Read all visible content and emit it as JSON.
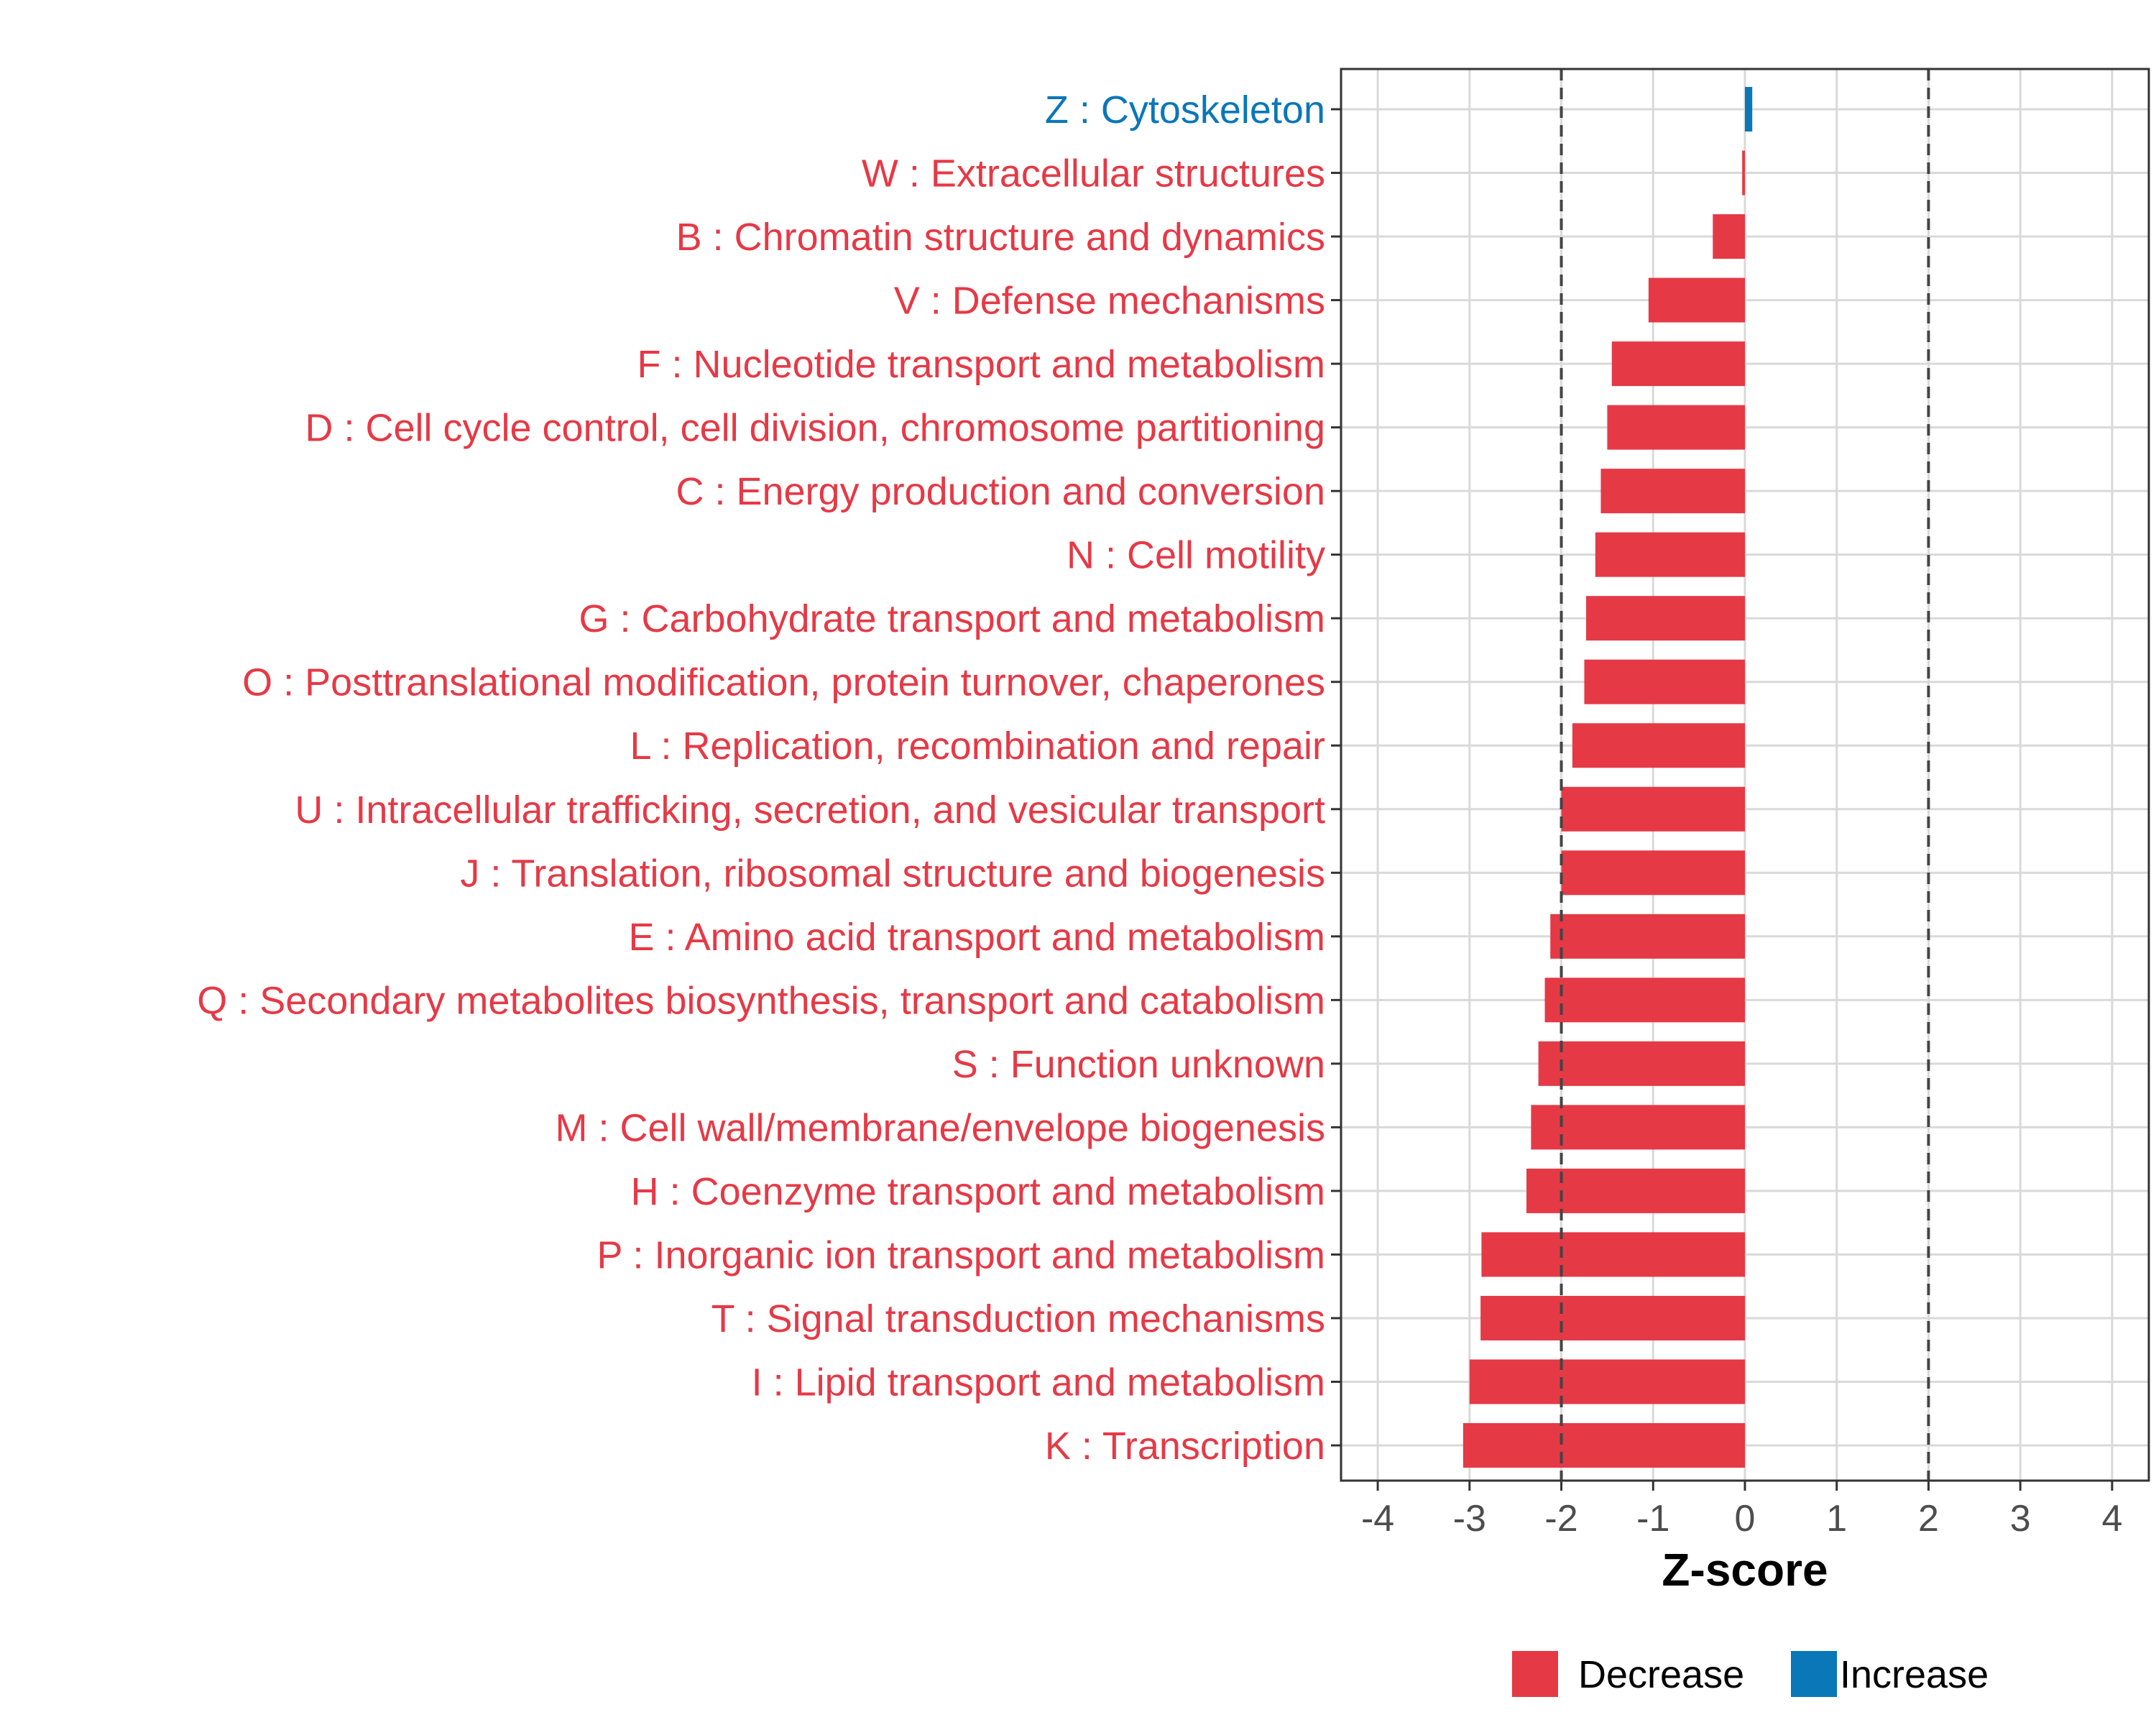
{
  "chart_data": {
    "type": "bar",
    "orientation": "horizontal",
    "xlabel": "Z-score",
    "xlim": [
      -4.4,
      4.4
    ],
    "xticks": [
      -4,
      -3,
      -2,
      -1,
      0,
      1,
      2,
      3,
      4
    ],
    "xtick_labels": [
      "-4",
      "-3",
      "-2",
      "-1",
      "0",
      "1",
      "2",
      "3",
      "4"
    ],
    "reference_lines": [
      -2,
      2
    ],
    "grid": true,
    "legend_position": "bottom",
    "colors": {
      "Decrease": "#e63946",
      "Increase": "#0a77b8"
    },
    "legend": [
      {
        "label": "Decrease",
        "color": "#e63946"
      },
      {
        "label": "Increase",
        "color": "#0a77b8"
      }
    ],
    "categories": [
      "Z : Cytoskeleton",
      "W : Extracellular structures",
      "B : Chromatin structure and dynamics",
      "V : Defense mechanisms",
      "F : Nucleotide transport and metabolism",
      "D : Cell cycle control, cell division, chromosome partitioning",
      "C : Energy production and conversion",
      "N : Cell motility",
      "G : Carbohydrate transport and metabolism",
      "O : Posttranslational modification, protein turnover, chaperones",
      "L : Replication, recombination and repair",
      "U : Intracellular trafficking, secretion, and vesicular transport",
      "J : Translation, ribosomal structure and biogenesis",
      "E : Amino acid transport and metabolism",
      "Q : Secondary metabolites biosynthesis, transport and catabolism",
      "S : Function unknown",
      "M : Cell wall/membrane/envelope biogenesis",
      "H : Coenzyme transport and metabolism",
      "P : Inorganic ion transport and metabolism",
      "T : Signal transduction mechanisms",
      "I : Lipid transport and metabolism",
      "K : Transcription"
    ],
    "values": [
      0.08,
      -0.03,
      -0.35,
      -1.05,
      -1.45,
      -1.5,
      -1.57,
      -1.63,
      -1.73,
      -1.75,
      -1.88,
      -2.0,
      -2.0,
      -2.12,
      -2.18,
      -2.25,
      -2.33,
      -2.38,
      -2.87,
      -2.88,
      -3.0,
      -3.07
    ],
    "groups": [
      "Increase",
      "Decrease",
      "Decrease",
      "Decrease",
      "Decrease",
      "Decrease",
      "Decrease",
      "Decrease",
      "Decrease",
      "Decrease",
      "Decrease",
      "Decrease",
      "Decrease",
      "Decrease",
      "Decrease",
      "Decrease",
      "Decrease",
      "Decrease",
      "Decrease",
      "Decrease",
      "Decrease",
      "Decrease"
    ]
  }
}
